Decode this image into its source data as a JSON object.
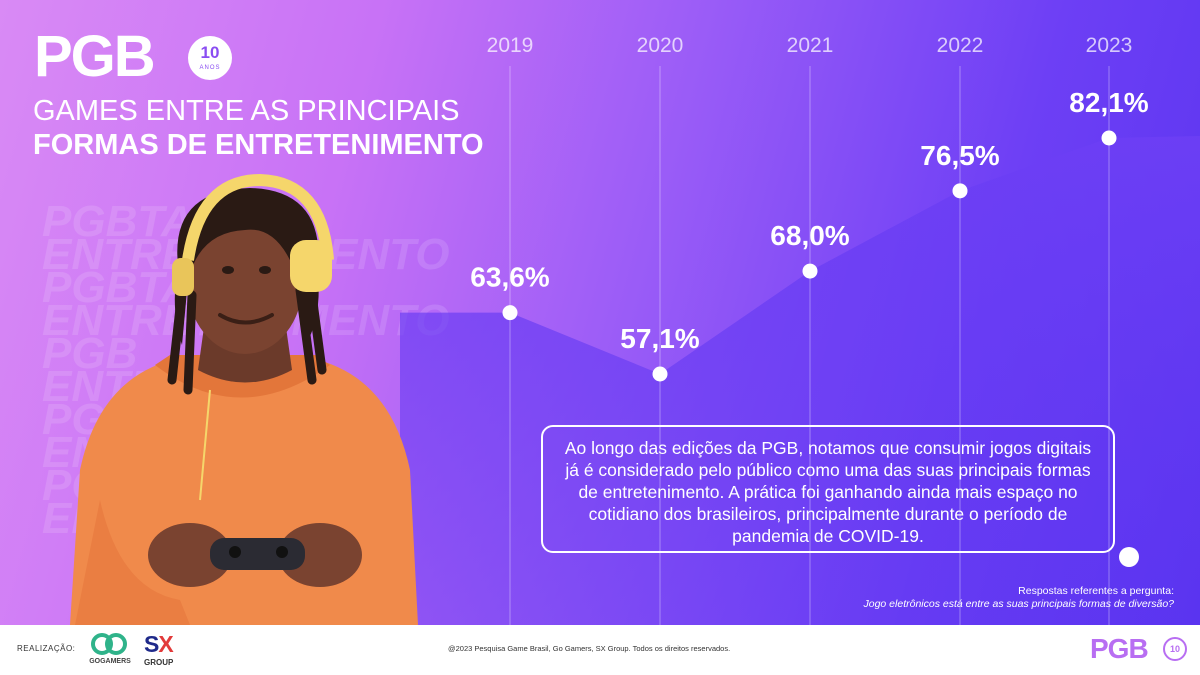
{
  "brand": {
    "logo_text": "PGB",
    "anniversary_number": "10",
    "anniversary_word": "ANOS"
  },
  "title": {
    "line1": "GAMES ENTRE AS PRINCIPAIS",
    "line2": "FORMAS DE ENTRETENIMENTO"
  },
  "background_words": [
    "PGBTAGOS",
    "ENTRETENIMENTO",
    "PGBTAGOS",
    "ENTRETENIMENTO",
    "PGB",
    "ENTRE",
    "PGB",
    "ENTRE",
    "PGB",
    "ENTRE"
  ],
  "chart_data": {
    "type": "area",
    "title": "",
    "xlabel": "",
    "ylabel": "",
    "categories": [
      "2019",
      "2020",
      "2021",
      "2022",
      "2023"
    ],
    "values": [
      63.6,
      57.1,
      68.0,
      76.5,
      82.1
    ],
    "value_labels": [
      "63,6%",
      "57,1%",
      "68,0%",
      "76,5%",
      "82,1%"
    ],
    "unit": "%",
    "ylim": [
      30,
      90
    ],
    "grid": "vertical lines at each year",
    "area_color": "#6a3cf3",
    "line_color": "#ffffff"
  },
  "caption": {
    "text": "Ao longo das edições da PGB, notamos que consumir jogos digitais já é considerado pelo público como uma das suas principais formas de entretenimento. A prática foi ganhando ainda mais espaço no cotidiano dos brasileiros, principalmente durante o período de pandemia de COVID-19."
  },
  "note": {
    "label": "Respostas referentes a pergunta:",
    "question": "Jogo eletrônicos está entre as suas principais formas de diversão?"
  },
  "footer": {
    "realizacao": "REALIZAÇÃO:",
    "partner1": "GOGAMERS",
    "partner2_top": "SX",
    "partner2_bottom": "GROUP",
    "copyright": "@2023 Pesquisa Game Brasil, Go Gamers, SX Group. Todos os direitos reservados.",
    "logo_text": "PGB",
    "logo_badge": "10"
  },
  "colors": {
    "accent_orange": "#f08a4b",
    "accent_purple": "#6a3cf3",
    "headphone_yellow": "#f5d66b",
    "sx_blue": "#1f2a8a",
    "sx_red": "#e23a3a"
  }
}
